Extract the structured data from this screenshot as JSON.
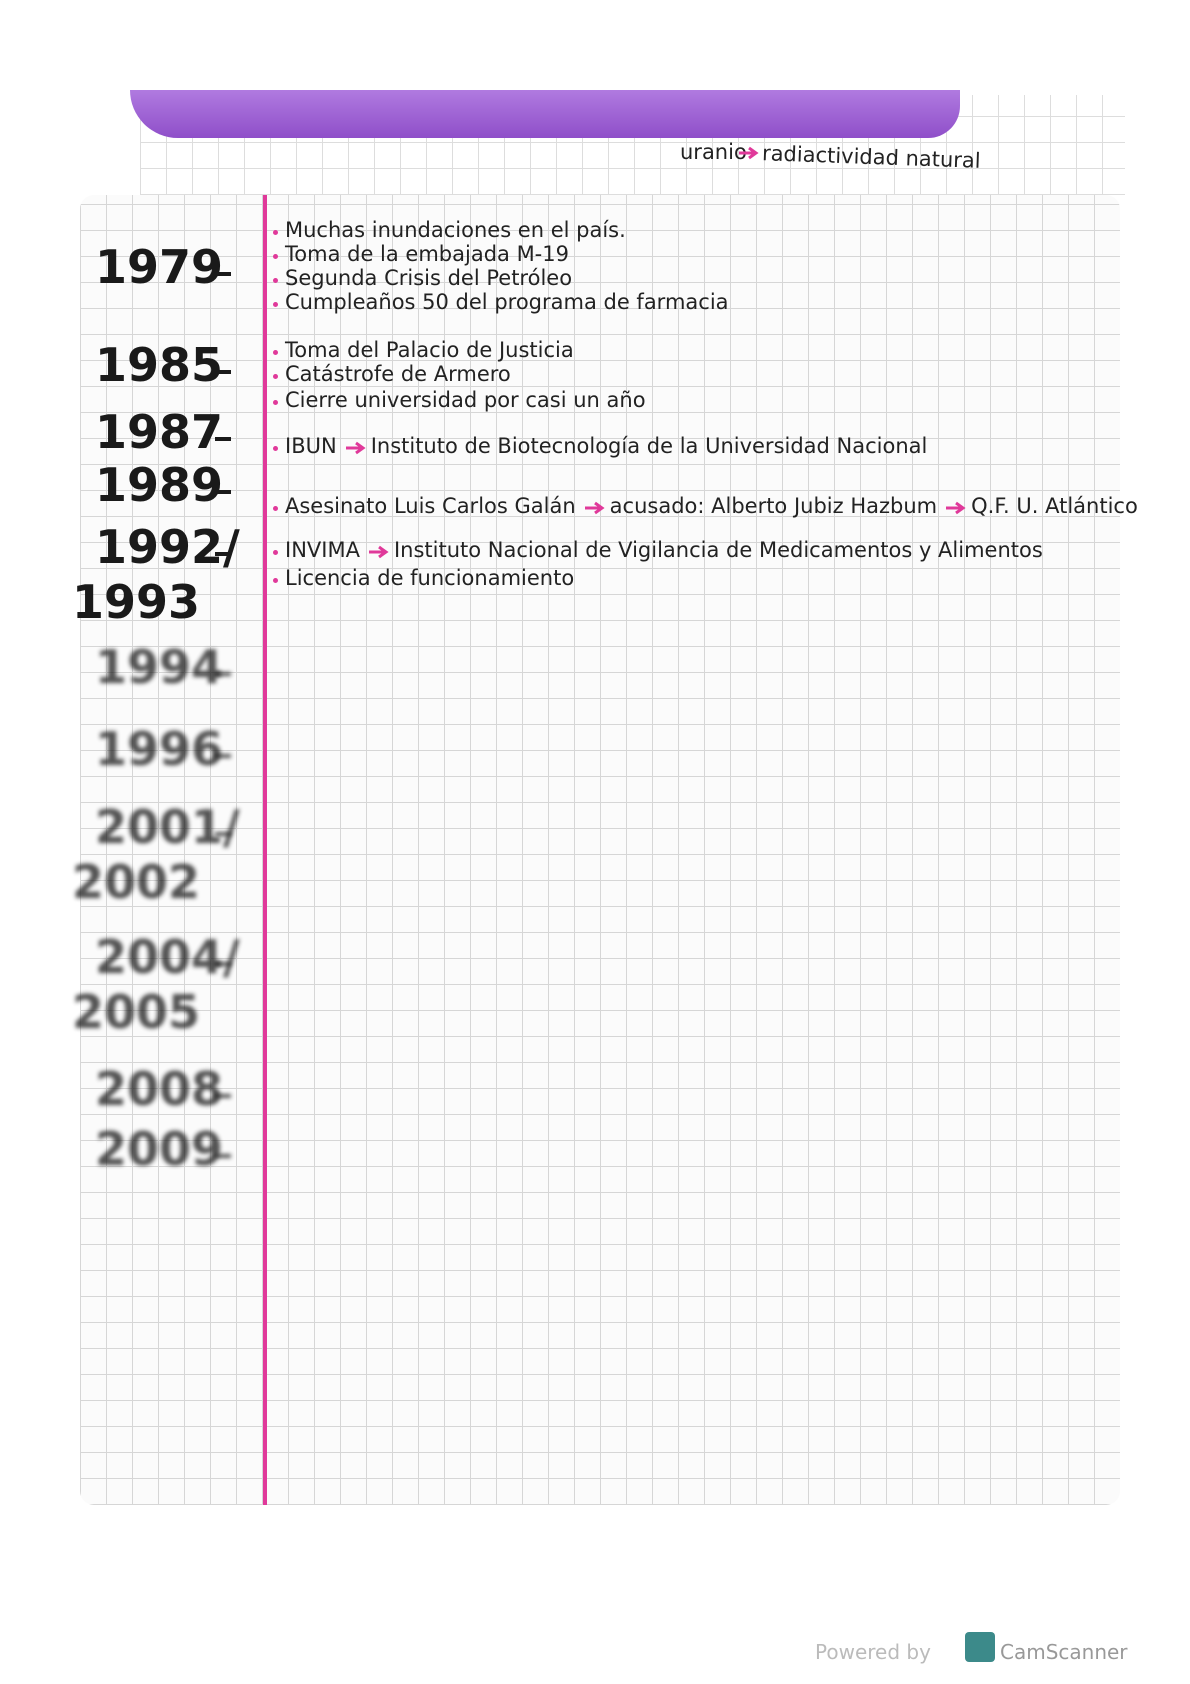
{
  "header": {
    "fragment": "uranio",
    "arrow_target": "radiactividad natural"
  },
  "timeline": [
    {
      "year": [
        "1979"
      ],
      "items": [
        [
          "Muchas inundaciones en el país."
        ],
        [
          "Toma de la embajada M-19"
        ],
        [
          "Segunda Crisis del Petróleo"
        ],
        [
          "Cumpleaños 50 del programa de farmacia"
        ]
      ]
    },
    {
      "year": [
        "1985"
      ],
      "items": [
        [
          "Toma del Palacio de Justicia"
        ],
        [
          "Catástrofe de Armero"
        ],
        [
          "Cierre universidad por casi un año"
        ]
      ]
    },
    {
      "year": [
        "1987"
      ],
      "items": [
        [
          "IBUN",
          "Instituto de Biotecnología de la Universidad Nacional"
        ]
      ]
    },
    {
      "year": [
        "1989"
      ],
      "items": [
        [
          "Asesinato Luis Carlos Galán",
          "acusado: Alberto Jubiz Hazbum",
          "Q.F. U. Atlántico"
        ]
      ]
    },
    {
      "year": [
        "1992/",
        "1993"
      ],
      "items": [
        [
          "INVIMA",
          "Instituto Nacional de Vigilancia de Medicamentos y Alimentos"
        ],
        [
          "Licencia de funcionamiento"
        ]
      ]
    },
    {
      "year": [
        "1994"
      ],
      "items": []
    },
    {
      "year": [
        "1996"
      ],
      "items": []
    },
    {
      "year": [
        "2001/",
        "2002"
      ],
      "items": []
    },
    {
      "year": [
        "2004/",
        "2005"
      ],
      "items": []
    },
    {
      "year": [
        "2008"
      ],
      "items": []
    },
    {
      "year": [
        "2009"
      ],
      "items": []
    }
  ],
  "footer": {
    "powered_by": "Powered by",
    "app": "CamScanner"
  }
}
